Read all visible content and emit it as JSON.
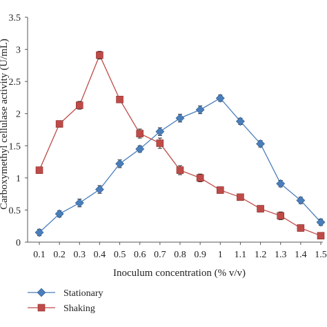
{
  "chart_data": {
    "type": "line",
    "title": "",
    "xlabel": "Inoculum concentration (% v/v)",
    "ylabel": "Carboxymethyl cellulase activity (U/mL)",
    "categories": [
      "0.1",
      "0.2",
      "0.3",
      "0.4",
      "0.5",
      "0.6",
      "0.7",
      "0.8",
      "0.9",
      "1",
      "1.1",
      "1.2",
      "1.3",
      "1.4",
      "1.5"
    ],
    "y_ticks": [
      "0",
      "0.5",
      "1",
      "1.5",
      "2",
      "2.5",
      "3",
      "3.5"
    ],
    "ylim": [
      0,
      3.5
    ],
    "grid": false,
    "legend_position": "bottom-left",
    "series": [
      {
        "name": "Stationary",
        "marker": "diamond",
        "color": "#4a7ebb",
        "values": [
          0.15,
          0.44,
          0.61,
          0.82,
          1.22,
          1.45,
          1.72,
          1.93,
          2.06,
          2.24,
          1.88,
          1.53,
          0.91,
          0.65,
          0.31
        ],
        "errors": [
          0.05,
          0.05,
          0.06,
          0.06,
          0.06,
          0.05,
          0.06,
          0.06,
          0.06,
          0.05,
          0.05,
          0.05,
          0.05,
          0.05,
          0.05
        ]
      },
      {
        "name": "Shaking",
        "marker": "square",
        "color": "#be4b48",
        "values": [
          1.12,
          1.84,
          2.13,
          2.91,
          2.22,
          1.69,
          1.54,
          1.12,
          1.0,
          0.81,
          0.7,
          0.52,
          0.41,
          0.22,
          0.1
        ],
        "errors": [
          0.05,
          0.05,
          0.06,
          0.06,
          0.05,
          0.07,
          0.08,
          0.07,
          0.06,
          0.05,
          0.05,
          0.05,
          0.06,
          0.05,
          0.04
        ]
      }
    ]
  }
}
